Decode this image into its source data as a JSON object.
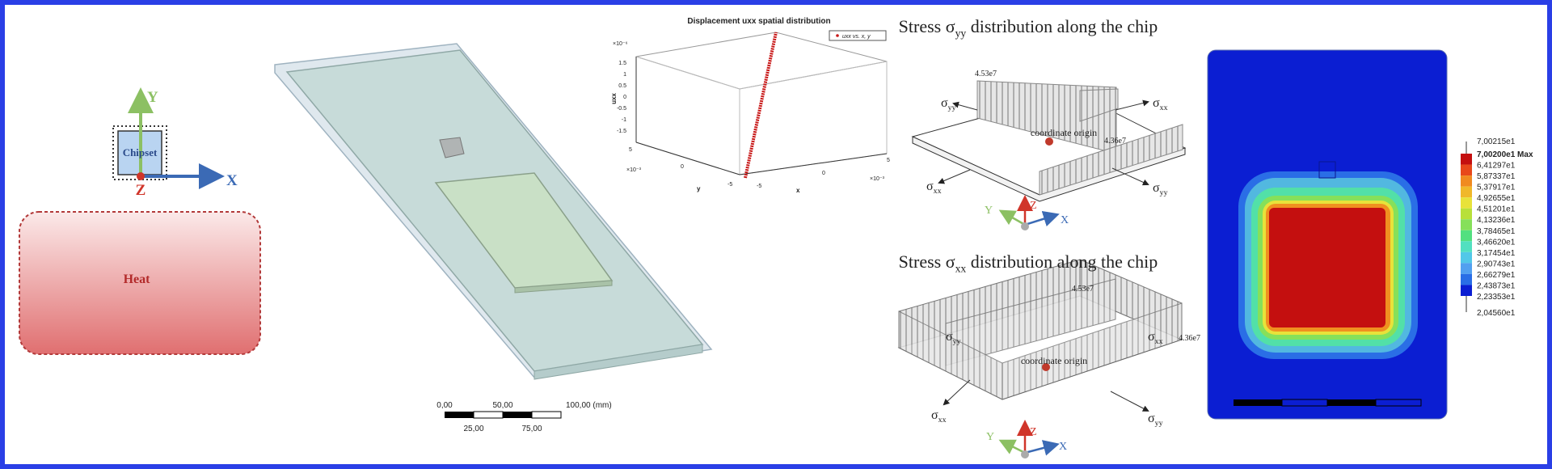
{
  "thermal_setup": {
    "axis_y": "Y",
    "chip_label": "Chipset",
    "axis_x": "X",
    "axis_z": "Z",
    "heat_label": "Heat"
  },
  "model_view": {
    "scale_top": [
      "0,00",
      "50,00",
      "100,00 (mm)"
    ],
    "scale_bottom": [
      "25,00",
      "75,00"
    ]
  },
  "displacement_plot": {
    "title": "Displacement uxx spatial distribution",
    "legend": "uxx vs. x, y",
    "z_label": "uxx",
    "z_multiplier": "×10⁻⁶",
    "z_ticks": [
      "1.5",
      "1",
      "0.5",
      "0",
      "-0.5",
      "-1",
      "-1.5"
    ],
    "y_label": "y",
    "y_multiplier": "×10⁻³",
    "y_ticks": [
      "5",
      "0",
      "-5"
    ],
    "x_label": "x",
    "x_multiplier": "×10⁻³",
    "x_ticks": [
      "-5",
      "0",
      "5"
    ]
  },
  "stress_yy": {
    "title": {
      "prefix": "Stress σ",
      "subscript": "yy",
      "suffix": " distribution along the chip"
    },
    "peak_high": "4.53e7",
    "peak_low": "4.36e7",
    "origin": "coordinate origin",
    "sigma_labels": [
      {
        "symbol": "σ",
        "sub": "yy"
      },
      {
        "symbol": "σ",
        "sub": "xx"
      },
      {
        "symbol": "σ",
        "sub": "xx"
      },
      {
        "symbol": "σ",
        "sub": "yy"
      }
    ],
    "axes": {
      "x": "X",
      "y": "Y",
      "z": "Z"
    }
  },
  "stress_xx": {
    "title": {
      "prefix": "Stress σ",
      "subscript": "xx",
      "suffix": " distribution along the chip"
    },
    "peak_high": "4.53e7",
    "peak_low": "4.36e7",
    "origin": "coordinate origin",
    "sigma_labels": [
      {
        "symbol": "σ",
        "sub": "yy"
      },
      {
        "symbol": "σ",
        "sub": "xx"
      },
      {
        "symbol": "σ",
        "sub": "xx"
      },
      {
        "symbol": "σ",
        "sub": "yy"
      }
    ],
    "axes": {
      "x": "X",
      "y": "Y",
      "z": "Z"
    }
  },
  "contour_legend": {
    "top": "7,00215e1",
    "levels": [
      "7,00200e1 Max",
      "6,41297e1",
      "5,87337e1",
      "5,37917e1",
      "4,92655e1",
      "4,51201e1",
      "4,13236e1",
      "3,78465e1",
      "3,46620e1",
      "3,17454e1",
      "2,90743e1",
      "2,66279e1",
      "2,43873e1",
      "2,23353e1"
    ],
    "bottom": "2,04560e1"
  }
}
